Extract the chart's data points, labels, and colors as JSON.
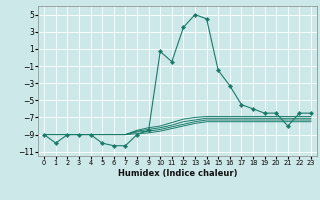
{
  "xlabel": "Humidex (Indice chaleur)",
  "background_color": "#cde8e8",
  "grid_color": "#ffffff",
  "line_color": "#1a7a6a",
  "xlim": [
    -0.5,
    23.5
  ],
  "ylim": [
    -11.5,
    6.0
  ],
  "xticks": [
    0,
    1,
    2,
    3,
    4,
    5,
    6,
    7,
    8,
    9,
    10,
    11,
    12,
    13,
    14,
    15,
    16,
    17,
    18,
    19,
    20,
    21,
    22,
    23
  ],
  "yticks": [
    -11,
    -9,
    -7,
    -5,
    -3,
    -1,
    1,
    3,
    5
  ],
  "main_line_x": [
    0,
    1,
    2,
    3,
    4,
    5,
    6,
    7,
    8,
    9,
    10,
    11,
    12,
    13,
    14,
    15,
    16,
    17,
    18,
    19,
    20,
    21,
    22,
    23
  ],
  "main_line_y": [
    -9.0,
    -10.0,
    -9.0,
    -9.0,
    -9.0,
    -10.0,
    -10.3,
    -10.3,
    -9.0,
    -8.5,
    0.7,
    -0.5,
    3.5,
    5.0,
    4.5,
    -1.5,
    -3.3,
    -5.5,
    -6.0,
    -6.5,
    -6.5,
    -8.0,
    -6.5,
    -6.5
  ],
  "band_lines": [
    [
      -9.0,
      -9.0,
      -9.0,
      -9.0,
      -9.0,
      -9.0,
      -9.0,
      -9.0,
      -8.5,
      -8.2,
      -8.0,
      -7.6,
      -7.2,
      -7.0,
      -6.9,
      -6.9,
      -6.9,
      -6.9,
      -6.9,
      -6.9,
      -6.9,
      -6.9,
      -6.9,
      -6.9
    ],
    [
      -9.0,
      -9.0,
      -9.0,
      -9.0,
      -9.0,
      -9.0,
      -9.0,
      -9.0,
      -8.6,
      -8.4,
      -8.2,
      -7.9,
      -7.5,
      -7.3,
      -7.1,
      -7.1,
      -7.1,
      -7.1,
      -7.1,
      -7.1,
      -7.1,
      -7.1,
      -7.1,
      -7.1
    ],
    [
      -9.0,
      -9.0,
      -9.0,
      -9.0,
      -9.0,
      -9.0,
      -9.0,
      -9.0,
      -8.7,
      -8.6,
      -8.4,
      -8.1,
      -7.8,
      -7.5,
      -7.3,
      -7.3,
      -7.3,
      -7.3,
      -7.3,
      -7.3,
      -7.3,
      -7.3,
      -7.3,
      -7.3
    ],
    [
      -9.0,
      -9.0,
      -9.0,
      -9.0,
      -9.0,
      -9.0,
      -9.0,
      -9.0,
      -8.9,
      -8.8,
      -8.6,
      -8.3,
      -8.0,
      -7.7,
      -7.5,
      -7.5,
      -7.5,
      -7.5,
      -7.5,
      -7.5,
      -7.5,
      -7.5,
      -7.5,
      -7.5
    ]
  ]
}
